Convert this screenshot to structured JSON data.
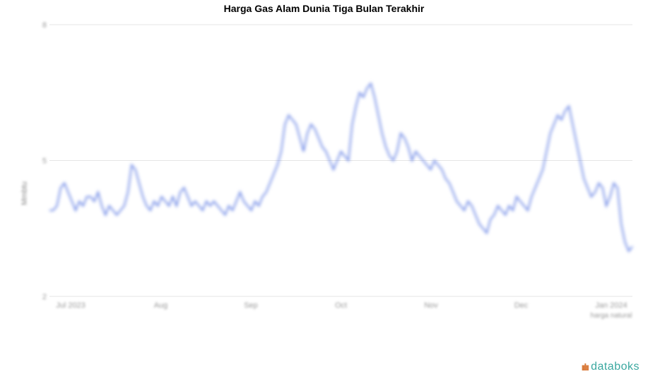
{
  "chart": {
    "title": "Harga Gas Alam Dunia Tiga Bulan Terakhir",
    "ylabel": "Mmbtu",
    "type": "line",
    "background_color": "#ffffff",
    "grid_color": "#e5e5e5",
    "line_color": "#6b86e5",
    "line_width": 2,
    "title_fontsize": 14,
    "label_fontsize": 11,
    "ylim": [
      2,
      8
    ],
    "yticks": [
      2,
      5,
      8
    ],
    "x_categories": [
      "Jul 2023",
      "Aug",
      "Sep",
      "Oct",
      "Nov",
      "Dec",
      "Jan 2024"
    ],
    "x_sublabel": "harga natural",
    "values": [
      3.9,
      3.9,
      4.0,
      4.4,
      4.5,
      4.3,
      4.1,
      3.9,
      4.1,
      4.0,
      4.2,
      4.2,
      4.1,
      4.3,
      4.0,
      3.8,
      4.0,
      3.9,
      3.8,
      3.9,
      4.0,
      4.3,
      4.9,
      4.8,
      4.5,
      4.2,
      4.0,
      3.9,
      4.1,
      4.0,
      4.2,
      4.1,
      4.0,
      4.2,
      4.0,
      4.3,
      4.4,
      4.2,
      4.0,
      4.1,
      4.0,
      3.9,
      4.1,
      4.0,
      4.1,
      4.0,
      3.9,
      3.8,
      4.0,
      3.9,
      4.1,
      4.3,
      4.1,
      4.0,
      3.9,
      4.1,
      4.0,
      4.2,
      4.3,
      4.5,
      4.7,
      4.9,
      5.2,
      5.8,
      6.0,
      5.9,
      5.8,
      5.5,
      5.2,
      5.6,
      5.8,
      5.7,
      5.5,
      5.3,
      5.2,
      5.0,
      4.8,
      5.0,
      5.2,
      5.1,
      5.0,
      5.8,
      6.2,
      6.5,
      6.4,
      6.6,
      6.7,
      6.4,
      6.0,
      5.6,
      5.3,
      5.1,
      5.0,
      5.2,
      5.6,
      5.5,
      5.3,
      5.0,
      5.2,
      5.1,
      5.0,
      4.9,
      4.8,
      5.0,
      4.9,
      4.8,
      4.6,
      4.5,
      4.3,
      4.1,
      4.0,
      3.9,
      4.1,
      4.0,
      3.8,
      3.6,
      3.5,
      3.4,
      3.7,
      3.8,
      4.0,
      3.9,
      3.8,
      4.0,
      3.9,
      4.2,
      4.1,
      4.0,
      3.9,
      4.2,
      4.4,
      4.6,
      4.8,
      5.2,
      5.6,
      5.8,
      6.0,
      5.9,
      6.1,
      6.2,
      5.8,
      5.4,
      5.0,
      4.6,
      4.4,
      4.2,
      4.3,
      4.5,
      4.4,
      4.0,
      4.2,
      4.5,
      4.4,
      3.6,
      3.2,
      3.0,
      3.1
    ]
  },
  "watermark": {
    "text": "databoks",
    "accent_color": "#d97b3c",
    "text_color": "#3aa8a0"
  }
}
